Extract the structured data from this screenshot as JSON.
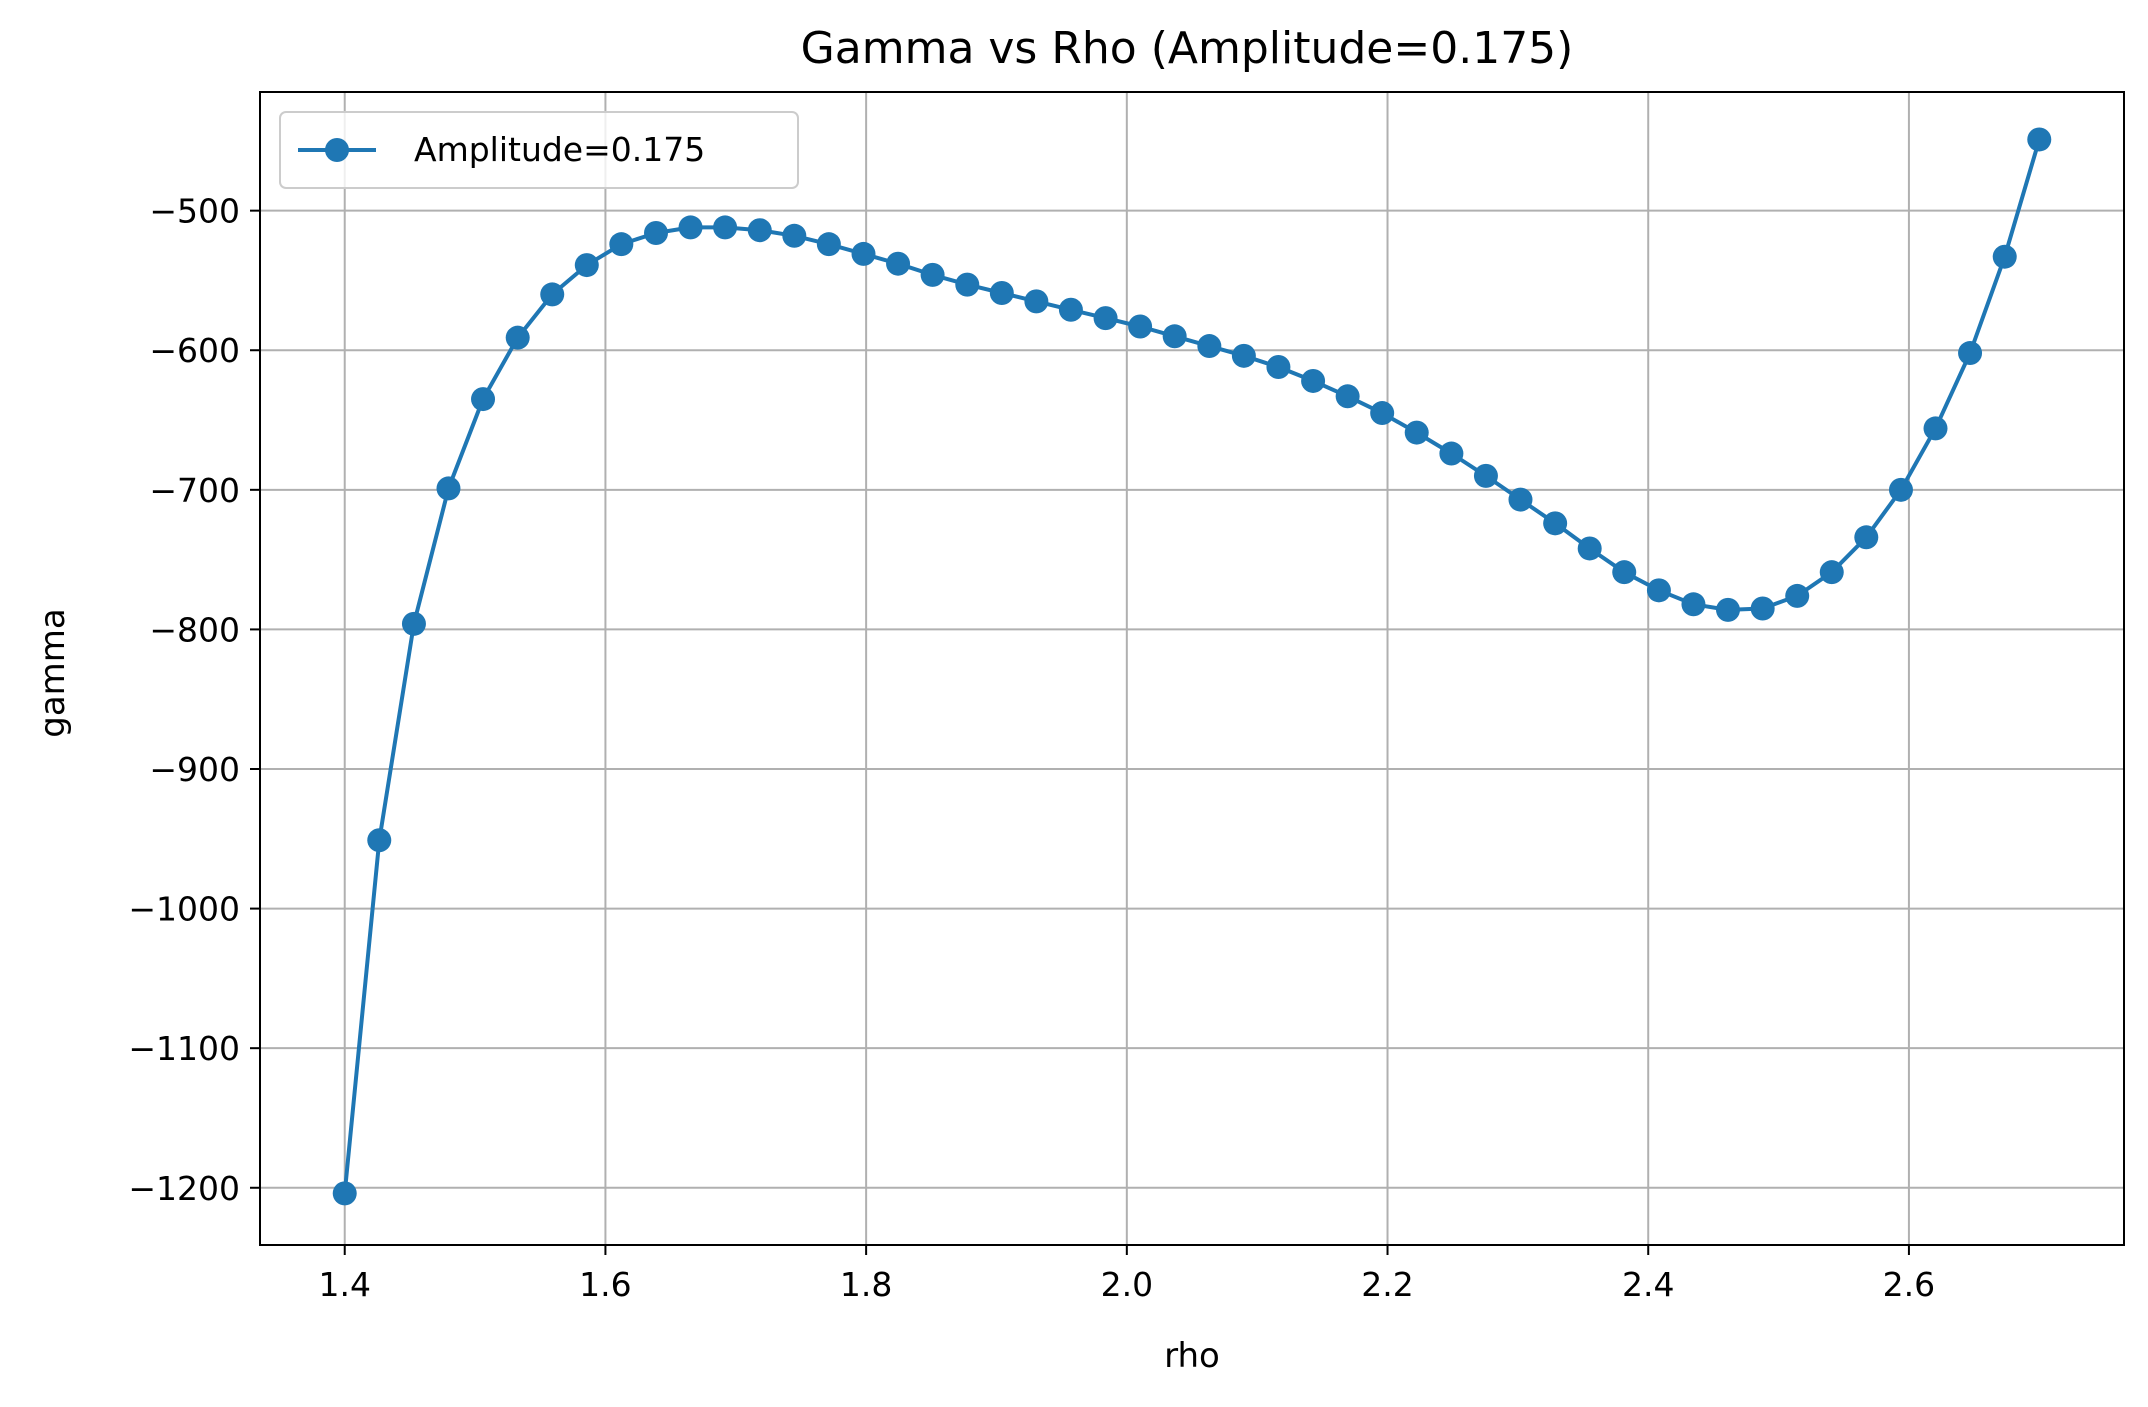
{
  "chart_data": {
    "type": "line",
    "title": "Gamma vs Rho (Amplitude=0.175)",
    "xlabel": "rho",
    "ylabel": "gamma",
    "xlim": [
      1.335,
      2.765
    ],
    "ylim": [
      -1241,
      -415
    ],
    "xticks": [
      1.4,
      1.6,
      1.8,
      2.0,
      2.2,
      2.4,
      2.6
    ],
    "xtick_labels": [
      "1.4",
      "1.6",
      "1.8",
      "2.0",
      "2.2",
      "2.4",
      "2.6"
    ],
    "yticks": [
      -500,
      -600,
      -700,
      -800,
      -900,
      -1000,
      -1100,
      -1200
    ],
    "ytick_labels": [
      "−500",
      "−600",
      "−700",
      "−800",
      "−900",
      "−1000",
      "−1100",
      "−1200"
    ],
    "grid": true,
    "legend_position": "top-left",
    "series": [
      {
        "name": "Amplitude=0.175",
        "color": "#1f77b4",
        "marker": "circle",
        "x": [
          1.4,
          1.4265,
          1.4531,
          1.4796,
          1.5061,
          1.5327,
          1.5592,
          1.5857,
          1.6122,
          1.6388,
          1.6653,
          1.6918,
          1.7184,
          1.7449,
          1.7714,
          1.798,
          1.8245,
          1.851,
          1.8776,
          1.9041,
          1.9306,
          1.9571,
          1.9837,
          2.0102,
          2.0367,
          2.0633,
          2.0898,
          2.1163,
          2.1429,
          2.1694,
          2.1959,
          2.2224,
          2.249,
          2.2755,
          2.302,
          2.3286,
          2.3551,
          2.3816,
          2.4082,
          2.4347,
          2.4612,
          2.4878,
          2.5143,
          2.5408,
          2.5673,
          2.5939,
          2.6204,
          2.6469,
          2.6735,
          2.7
        ],
        "y": [
          -1204,
          -951,
          -796,
          -699,
          -635,
          -591,
          -560,
          -539,
          -524,
          -516,
          -512,
          -512,
          -514,
          -518,
          -524,
          -531,
          -538,
          -546,
          -553,
          -559,
          -565,
          -571,
          -577,
          -583,
          -590,
          -597,
          -604,
          -612,
          -622,
          -633,
          -645,
          -659,
          -674,
          -690,
          -707,
          -724,
          -742,
          -759,
          -772,
          -782,
          -786,
          -785,
          -776,
          -759,
          -734,
          -700,
          -656,
          -602,
          -533,
          -449
        ]
      }
    ]
  }
}
